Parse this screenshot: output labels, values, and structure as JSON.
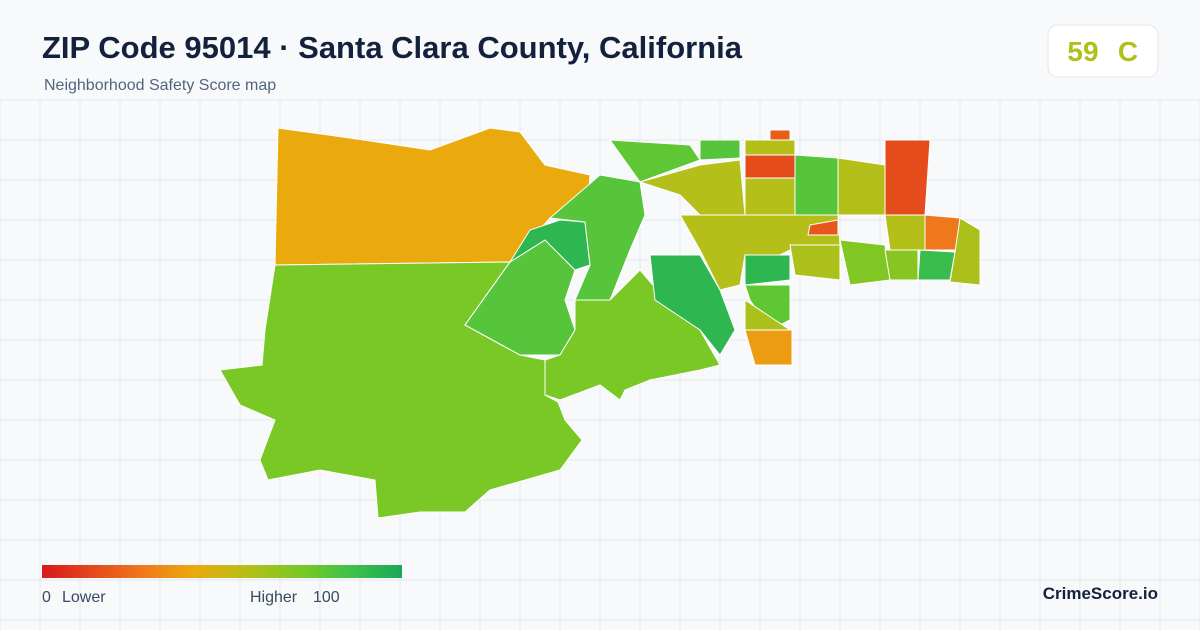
{
  "header": {
    "title": "ZIP Code 95014 · Santa Clara County, California",
    "subtitle": "Neighborhood Safety Score map"
  },
  "score": {
    "value": 59,
    "grade": "C"
  },
  "legend": {
    "min": 0,
    "min_label": "Lower",
    "max_label": "Higher",
    "max": 100
  },
  "map": {
    "region_scores": [
      42,
      72,
      80,
      92,
      80,
      72,
      58,
      80,
      15,
      20,
      58,
      58,
      80,
      58,
      15,
      58,
      92,
      92,
      78,
      60,
      38,
      60,
      70,
      58,
      28,
      88,
      60,
      68,
      18,
      78
    ]
  },
  "brand": "CrimeScore.io"
}
